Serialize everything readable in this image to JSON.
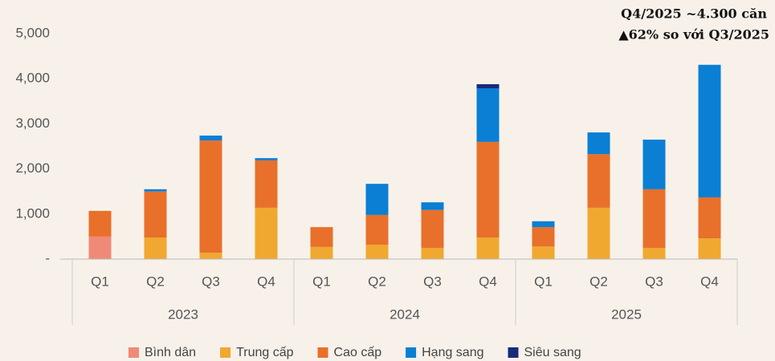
{
  "chart_data": {
    "type": "stacked_bar",
    "annotation": [
      "Q4/2025 ~4.300 căn",
      "▲62% so với Q3/2025"
    ],
    "categories": [
      "Q1",
      "Q2",
      "Q3",
      "Q4",
      "Q1",
      "Q2",
      "Q3",
      "Q4",
      "Q1",
      "Q2",
      "Q3",
      "Q4"
    ],
    "year_groups": [
      "2023",
      "2024",
      "2025"
    ],
    "series": [
      {
        "name": "Bình dân",
        "color": "#f08a78",
        "values": [
          500,
          0,
          0,
          0,
          0,
          0,
          0,
          0,
          0,
          0,
          0,
          0
        ]
      },
      {
        "name": "Trung cấp",
        "color": "#f0a830",
        "values": [
          0,
          480,
          140,
          1140,
          270,
          320,
          250,
          480,
          280,
          1140,
          250,
          460
        ]
      },
      {
        "name": "Cao cấp",
        "color": "#e8702a",
        "values": [
          570,
          1020,
          2490,
          1050,
          440,
          660,
          840,
          2120,
          430,
          1190,
          1300,
          910
        ]
      },
      {
        "name": "Hạng sang",
        "color": "#0a7fd4",
        "values": [
          0,
          50,
          110,
          50,
          0,
          690,
          170,
          1190,
          130,
          480,
          1100,
          2940
        ]
      },
      {
        "name": "Siêu sang",
        "color": "#1a2a7a",
        "values": [
          0,
          0,
          0,
          0,
          0,
          0,
          0,
          90,
          0,
          0,
          0,
          0
        ]
      }
    ],
    "ylim": [
      0,
      5000
    ],
    "yticks": [
      {
        "value": 0,
        "label": "-"
      },
      {
        "value": 1000,
        "label": "1,000"
      },
      {
        "value": 2000,
        "label": "2,000"
      },
      {
        "value": 3000,
        "label": "3,000"
      },
      {
        "value": 4000,
        "label": "4,000"
      },
      {
        "value": 5000,
        "label": "5,000"
      }
    ]
  }
}
